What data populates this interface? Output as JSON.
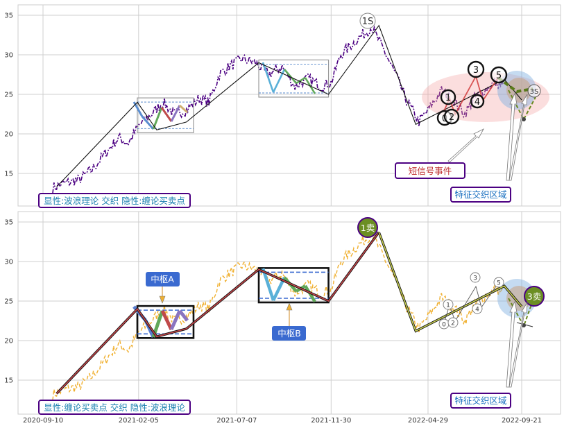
{
  "chart_data": [
    {
      "type": "line",
      "panel": "top",
      "series_color": "#4b0082",
      "x_ticks": [
        "2020-09-10",
        "2021-02-05",
        "2021-07-07",
        "2021-11-30",
        "2022-04-29",
        "2022-09-21"
      ],
      "y_ticks": [
        15,
        20,
        25,
        30,
        35
      ],
      "ylim": [
        11,
        36.5
      ],
      "grid": true,
      "price_series": [
        [
          "2020-09-25",
          13.2
        ],
        [
          "2020-10-15",
          13.8
        ],
        [
          "2020-11-05",
          14.2
        ],
        [
          "2020-11-25",
          15.5
        ],
        [
          "2020-12-15",
          17.5
        ],
        [
          "2021-01-05",
          19.5
        ],
        [
          "2021-01-20",
          18.8
        ],
        [
          "2021-02-05",
          21.0
        ],
        [
          "2021-02-25",
          22.5
        ],
        [
          "2021-03-15",
          24.0
        ],
        [
          "2021-04-01",
          22.5
        ],
        [
          "2021-04-20",
          23.0
        ],
        [
          "2021-05-10",
          24.5
        ],
        [
          "2021-05-25",
          24.0
        ],
        [
          "2021-06-10",
          27.5
        ],
        [
          "2021-06-25",
          28.5
        ],
        [
          "2021-07-15",
          29.5
        ],
        [
          "2021-08-05",
          29.0
        ],
        [
          "2021-08-25",
          27.5
        ],
        [
          "2021-09-15",
          28.5
        ],
        [
          "2021-10-05",
          26.0
        ],
        [
          "2021-10-25",
          27.0
        ],
        [
          "2021-11-15",
          26.0
        ],
        [
          "2021-11-30",
          26.5
        ],
        [
          "2021-12-15",
          30.0
        ],
        [
          "2022-01-10",
          32.0
        ],
        [
          "2022-02-01",
          33.5
        ],
        [
          "2022-02-20",
          30.5
        ],
        [
          "2022-03-10",
          27.5
        ],
        [
          "2022-03-25",
          24.5
        ],
        [
          "2022-04-15",
          21.5
        ],
        [
          "2022-04-29",
          23.0
        ],
        [
          "2022-05-20",
          25.5
        ],
        [
          "2022-06-10",
          24.0
        ],
        [
          "2022-06-25",
          22.5
        ],
        [
          "2022-07-10",
          24.5
        ],
        [
          "2022-07-25",
          25.5
        ],
        [
          "2022-08-10",
          26.5
        ],
        [
          "2022-08-25",
          26.0
        ]
      ],
      "trend_line": [
        [
          "2020-10-01",
          13.3
        ],
        [
          "2021-02-03",
          24.0
        ],
        [
          "2021-03-05",
          20.5
        ],
        [
          "2021-04-20",
          21.5
        ],
        [
          "2021-08-10",
          29.0
        ],
        [
          "2021-11-26",
          25.0
        ],
        [
          "2022-02-12",
          33.7
        ],
        [
          "2022-04-10",
          21.2
        ],
        [
          "2022-08-25",
          26.9
        ],
        [
          "2022-09-21",
          24.3
        ]
      ],
      "zhongshu_boxes": [
        {
          "x0": "2021-02-03",
          "x1": "2021-05-01",
          "y0": 20.5,
          "y1": 24.2
        },
        {
          "x0": "2021-08-10",
          "x1": "2021-11-26",
          "y0": 25.0,
          "y1": 29.0
        }
      ],
      "annotations": {
        "peak_label": "1S",
        "wave_labels": [
          "0",
          "1",
          "2",
          "3",
          "4",
          "5"
        ],
        "sell_label": "3S",
        "signal_event": "短信号事件",
        "feature_zone": "特征交织区域",
        "legend_text": "显性:波浪理论 交织 隐性:缠论买卖点"
      }
    },
    {
      "type": "line",
      "panel": "bottom",
      "series_color": "#f0b030",
      "x_ticks": [
        "2020-09-10",
        "2021-02-05",
        "2021-07-07",
        "2021-11-30",
        "2022-04-29",
        "2022-09-21"
      ],
      "y_ticks": [
        15,
        20,
        25,
        30,
        35
      ],
      "ylim": [
        11,
        36.5
      ],
      "grid": true,
      "annotations": {
        "center_a": "中枢A",
        "center_b": "中枢B",
        "sell_1": "1卖",
        "sell_3": "3卖",
        "wave_labels": [
          "0",
          "1",
          "2",
          "3",
          "4",
          "5"
        ],
        "feature_zone": "特征交织区域",
        "legend_text": "显性:缠论买卖点 交织 隐性:波浪理论"
      }
    }
  ]
}
